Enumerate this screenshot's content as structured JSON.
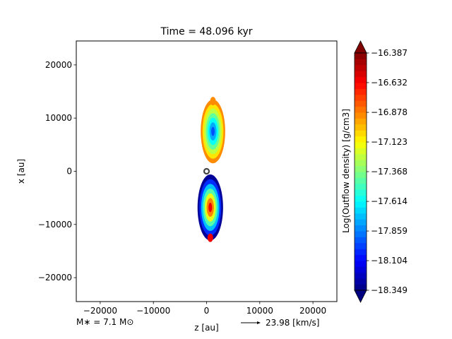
{
  "chart_data": {
    "type": "heatmap",
    "title": "Time = 48.096 kyr",
    "xlabel": "z [au]",
    "ylabel": "x [au]",
    "xlim": [
      -24500,
      24500
    ],
    "ylim": [
      -24500,
      24500
    ],
    "x_ticks": [
      -20000,
      -10000,
      0,
      10000,
      20000
    ],
    "x_tick_labels": [
      "−20000",
      "−10000",
      "0",
      "10000",
      "20000"
    ],
    "y_ticks": [
      -20000,
      -10000,
      0,
      10000,
      20000
    ],
    "y_tick_labels": [
      "−20000",
      "−10000",
      "0",
      "10000",
      "20000"
    ],
    "grid": false,
    "colorbar": {
      "label": "Log(Outflow density) [g/cm3]",
      "min": -18.349,
      "max": -16.387,
      "ticks": [
        -16.387,
        -16.632,
        -16.878,
        -17.123,
        -17.368,
        -17.614,
        -17.859,
        -18.104,
        -18.349
      ],
      "tick_labels": [
        "−16.387",
        "−16.632",
        "−16.878",
        "−17.123",
        "−17.368",
        "−17.614",
        "−17.859",
        "−18.104",
        "−18.349"
      ],
      "colormap": "jet",
      "extend": "both"
    },
    "lobes": [
      {
        "x_center": 1200,
        "y_center": 7500,
        "half_width": 2300,
        "half_height": 6000,
        "min_density": -17.95,
        "max_density": -16.9
      },
      {
        "x_center": 700,
        "y_center": -6800,
        "half_width": 2400,
        "half_height": 6200,
        "min_density": -18.3,
        "max_density": -16.6
      }
    ],
    "star_marker": {
      "z": 0,
      "x": 0
    },
    "annotation_left": "M∗ = 7.1 M⊙",
    "annotation_right": "23.98 [km/s]"
  }
}
